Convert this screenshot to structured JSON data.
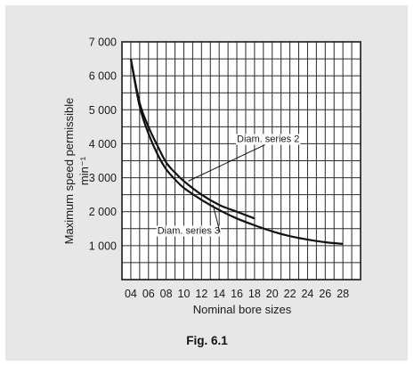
{
  "figure": {
    "caption": "Fig. 6.1"
  },
  "chart_data": {
    "type": "line",
    "title": "",
    "xlabel": "Nominal bore sizes",
    "ylabel": "Maximum speed permissible",
    "ylabel_unit": "min⁻¹",
    "x_tick_labels": [
      "04",
      "06",
      "08",
      "10",
      "12",
      "14",
      "16",
      "18",
      "20",
      "22",
      "24",
      "26",
      "28"
    ],
    "y_ticks": [
      1000,
      2000,
      3000,
      4000,
      5000,
      6000,
      7000
    ],
    "y_tick_labels": [
      "1 000",
      "2 000",
      "3 000",
      "4 000",
      "5 000",
      "6 000",
      "7 000"
    ],
    "xlim": [
      3,
      30
    ],
    "ylim": [
      0,
      7000
    ],
    "grid": true,
    "series": [
      {
        "name": "Diam. series 2",
        "x": [
          4,
          5,
          6,
          7,
          8,
          9,
          10,
          12,
          14,
          16,
          18
        ],
        "y": [
          6500,
          5200,
          4500,
          3950,
          3450,
          3150,
          2900,
          2500,
          2200,
          2000,
          1800
        ]
      },
      {
        "name": "Diam. series 3",
        "x": [
          4,
          5,
          6,
          7,
          8,
          9,
          10,
          12,
          14,
          16,
          18,
          20,
          22,
          24,
          26,
          28
        ],
        "y": [
          6500,
          5100,
          4300,
          3700,
          3250,
          2950,
          2700,
          2350,
          2050,
          1800,
          1600,
          1420,
          1280,
          1180,
          1100,
          1050
        ]
      }
    ],
    "annotations": [
      {
        "text": "Diam. series 2",
        "x": 16,
        "y": 4050,
        "arrow_to": [
          10.5,
          2900
        ]
      },
      {
        "text": "Diam. series 3",
        "x": 7,
        "y": 1350,
        "arrow_to": [
          13.3,
          2200
        ]
      }
    ]
  }
}
